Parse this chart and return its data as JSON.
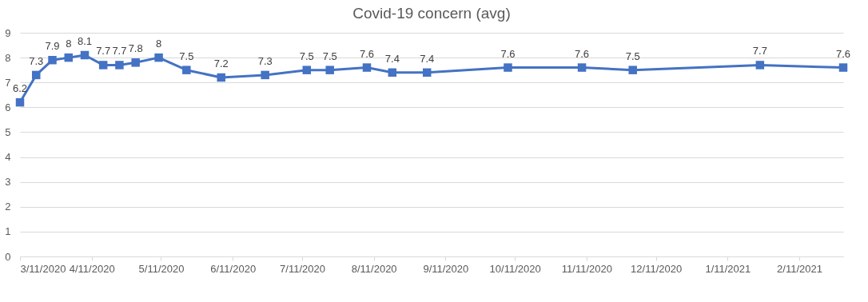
{
  "chart_data": {
    "type": "line",
    "title": "Covid-19 concern (avg)",
    "x": [
      "2020-03-11",
      "2020-03-18",
      "2020-03-25",
      "2020-04-01",
      "2020-04-08",
      "2020-04-16",
      "2020-04-23",
      "2020-04-30",
      "2020-05-10",
      "2020-05-22",
      "2020-06-06",
      "2020-06-25",
      "2020-07-13",
      "2020-07-23",
      "2020-08-08",
      "2020-08-19",
      "2020-09-03",
      "2020-10-08",
      "2020-11-09",
      "2020-12-01",
      "2021-01-25",
      "2021-03-02"
    ],
    "series": [
      {
        "color": "#4472c4",
        "values": [
          6.2,
          7.3,
          7.9,
          8,
          8.1,
          7.7,
          7.7,
          7.8,
          8,
          7.5,
          7.2,
          7.3,
          7.5,
          7.5,
          7.6,
          7.4,
          7.4,
          7.6,
          7.6,
          7.5,
          7.7,
          7.6
        ]
      }
    ],
    "ylim": [
      0,
      9
    ],
    "yticks": [
      0,
      1,
      2,
      3,
      4,
      5,
      6,
      7,
      8,
      9
    ],
    "xlim": [
      "2020-03-11",
      "2021-03-02"
    ],
    "xticks": [
      {
        "value": "2020-03-11",
        "label": "3/11/2020"
      },
      {
        "value": "2020-04-11",
        "label": "4/11/2020"
      },
      {
        "value": "2020-05-11",
        "label": "5/11/2020"
      },
      {
        "value": "2020-06-11",
        "label": "6/11/2020"
      },
      {
        "value": "2020-07-11",
        "label": "7/11/2020"
      },
      {
        "value": "2020-08-11",
        "label": "8/11/2020"
      },
      {
        "value": "2020-09-11",
        "label": "9/11/2020"
      },
      {
        "value": "2020-10-11",
        "label": "10/11/2020"
      },
      {
        "value": "2020-11-11",
        "label": "11/11/2020"
      },
      {
        "value": "2020-12-11",
        "label": "12/11/2020"
      },
      {
        "value": "2021-01-11",
        "label": "1/11/2021"
      },
      {
        "value": "2021-02-11",
        "label": "2/11/2021"
      }
    ],
    "grid": "y",
    "marker": "square",
    "line_style": "solid",
    "data_labels": true,
    "legend": false
  }
}
